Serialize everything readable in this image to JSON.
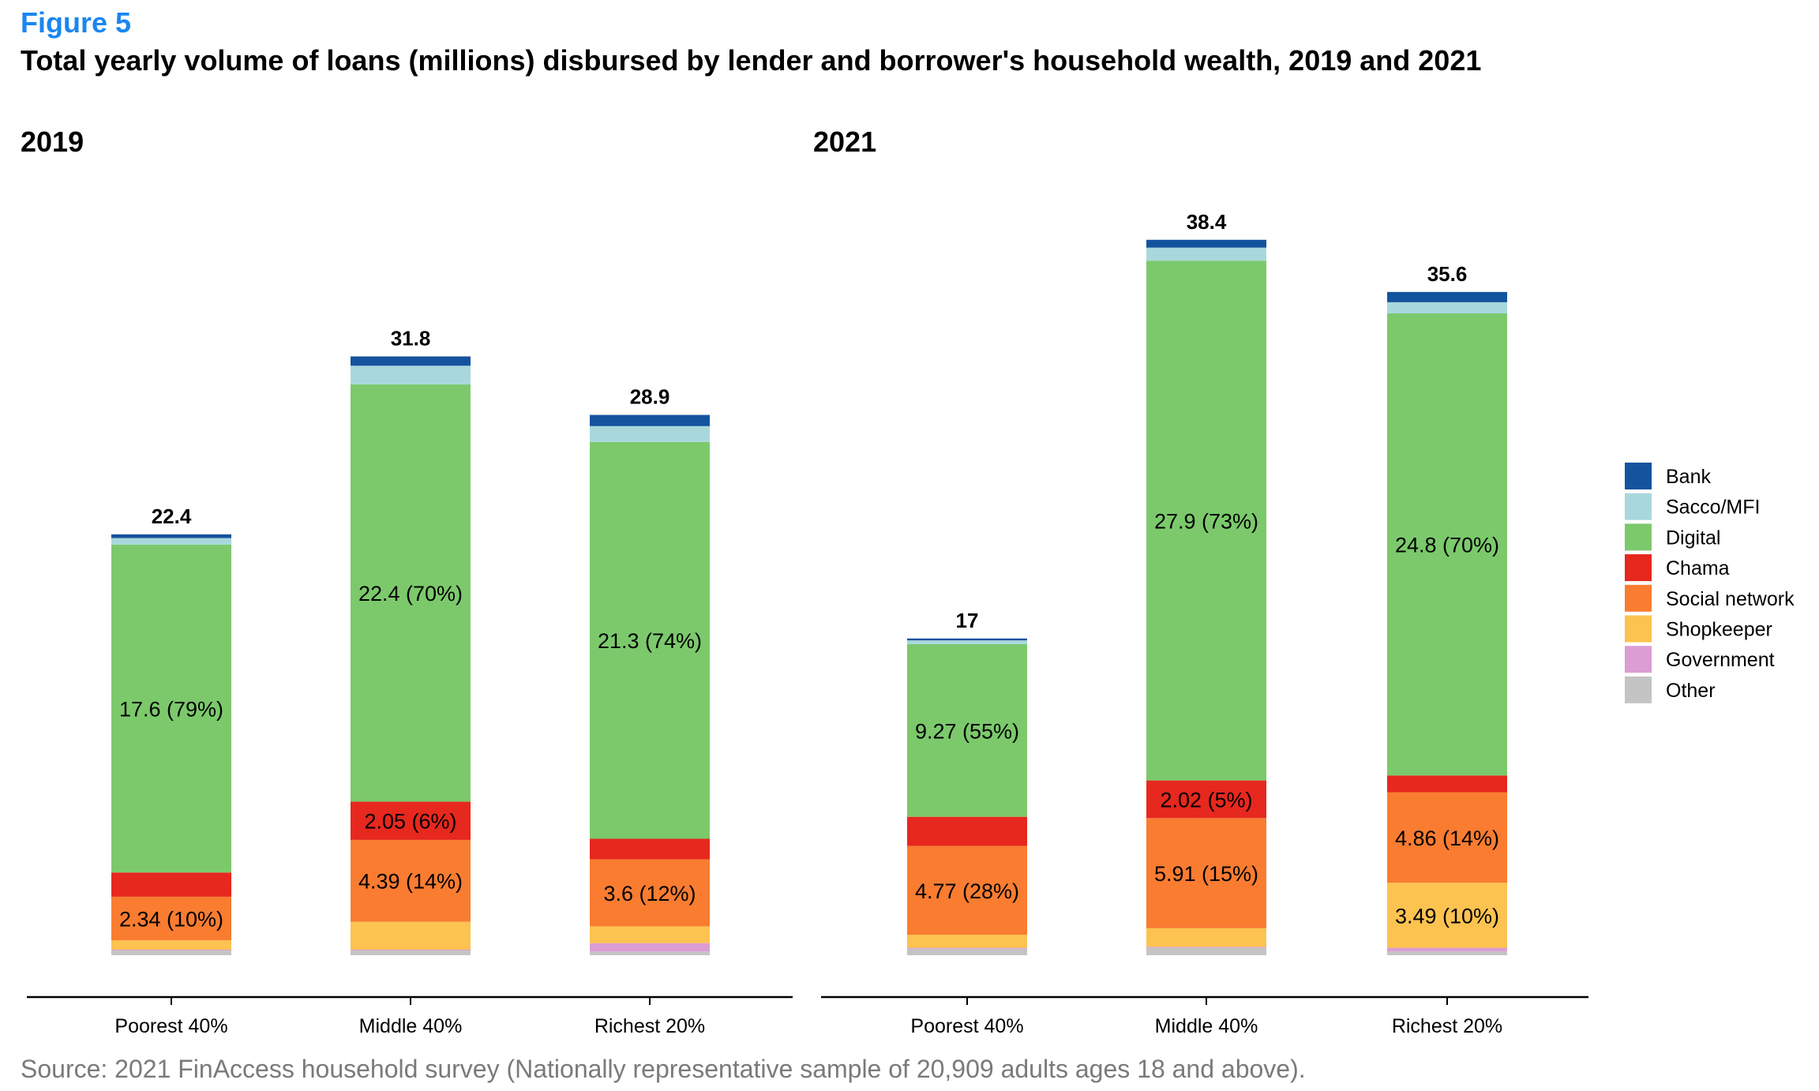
{
  "figure_label": "Figure 5",
  "title": "Total yearly volume of loans (millions) disbursed by lender and borrower's household wealth, 2019 and 2021",
  "source": "Source: 2021 FinAccess household survey (Nationally representative sample of 20,909  adults ages 18 and above).",
  "chart_data": {
    "type": "bar",
    "stacked": true,
    "grid": false,
    "legend_position": "right",
    "categories": [
      "Poorest 40%",
      "Middle 40%",
      "Richest 20%"
    ],
    "legend": [
      {
        "name": "Bank",
        "color": "#14539e"
      },
      {
        "name": "Sacco/MFI",
        "color": "#a8d8dc"
      },
      {
        "name": "Digital",
        "color": "#7cc96c"
      },
      {
        "name": "Chama",
        "color": "#e6281e"
      },
      {
        "name": "Social network",
        "color": "#f97c31"
      },
      {
        "name": "Shopkeeper",
        "color": "#fcc350"
      },
      {
        "name": "Government",
        "color": "#db9dd4"
      },
      {
        "name": "Other",
        "color": "#c4c4c4"
      }
    ],
    "panels": [
      {
        "title": "2019",
        "totals": [
          "22.4",
          "31.8",
          "28.9"
        ],
        "series": [
          {
            "name": "Other",
            "values": [
              0.25,
              0.25,
              0.2
            ]
          },
          {
            "name": "Government",
            "values": [
              0.05,
              0.05,
              0.45
            ]
          },
          {
            "name": "Shopkeeper",
            "values": [
              0.5,
              1.5,
              0.9
            ]
          },
          {
            "name": "Social network",
            "values": [
              2.34,
              4.39,
              3.6
            ]
          },
          {
            "name": "Chama",
            "values": [
              1.3,
              2.05,
              1.1
            ]
          },
          {
            "name": "Digital",
            "values": [
              17.6,
              22.4,
              21.3
            ]
          },
          {
            "name": "Sacco/MFI",
            "values": [
              0.35,
              1.0,
              0.85
            ]
          },
          {
            "name": "Bank",
            "values": [
              0.2,
              0.5,
              0.6
            ]
          }
        ],
        "labels": [
          {
            "series": "Social network",
            "category": "Poorest 40%",
            "text": "2.34 (10%)"
          },
          {
            "series": "Digital",
            "category": "Poorest 40%",
            "text": "17.6 (79%)"
          },
          {
            "series": "Social network",
            "category": "Middle 40%",
            "text": "4.39 (14%)"
          },
          {
            "series": "Chama",
            "category": "Middle 40%",
            "text": "2.05 (6%)"
          },
          {
            "series": "Digital",
            "category": "Middle 40%",
            "text": "22.4 (70%)"
          },
          {
            "series": "Social network",
            "category": "Richest 20%",
            "text": "3.6 (12%)"
          },
          {
            "series": "Digital",
            "category": "Richest 20%",
            "text": "21.3 (74%)"
          }
        ]
      },
      {
        "title": "2021",
        "totals": [
          "17",
          "38.4",
          "35.6"
        ],
        "series": [
          {
            "name": "Other",
            "values": [
              0.35,
              0.4,
              0.2
            ]
          },
          {
            "name": "Government",
            "values": [
              0.05,
              0.05,
              0.2
            ]
          },
          {
            "name": "Shopkeeper",
            "values": [
              0.7,
              1.0,
              3.49
            ]
          },
          {
            "name": "Social network",
            "values": [
              4.77,
              5.91,
              4.86
            ]
          },
          {
            "name": "Chama",
            "values": [
              1.56,
              2.02,
              0.9
            ]
          },
          {
            "name": "Digital",
            "values": [
              9.27,
              27.9,
              24.8
            ]
          },
          {
            "name": "Sacco/MFI",
            "values": [
              0.2,
              0.7,
              0.6
            ]
          },
          {
            "name": "Bank",
            "values": [
              0.1,
              0.42,
              0.55
            ]
          }
        ],
        "labels": [
          {
            "series": "Social network",
            "category": "Poorest 40%",
            "text": "4.77 (28%)"
          },
          {
            "series": "Digital",
            "category": "Poorest 40%",
            "text": "9.27 (55%)"
          },
          {
            "series": "Social network",
            "category": "Middle 40%",
            "text": "5.91 (15%)"
          },
          {
            "series": "Chama",
            "category": "Middle 40%",
            "text": "2.02 (5%)"
          },
          {
            "series": "Digital",
            "category": "Middle 40%",
            "text": "27.9 (73%)"
          },
          {
            "series": "Shopkeeper",
            "category": "Richest 20%",
            "text": "3.49 (10%)"
          },
          {
            "series": "Social network",
            "category": "Richest 20%",
            "text": "4.86 (14%)"
          },
          {
            "series": "Digital",
            "category": "Richest 20%",
            "text": "24.8 (70%)"
          }
        ]
      }
    ]
  }
}
